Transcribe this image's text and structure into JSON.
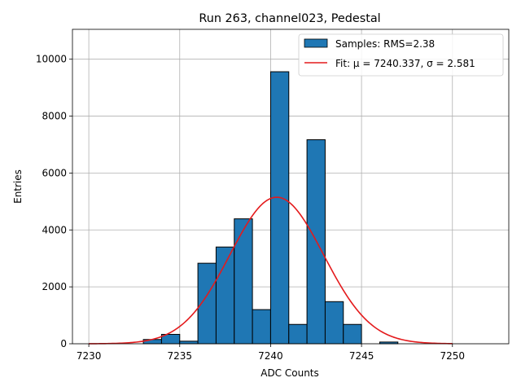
{
  "chart_data": {
    "type": "bar",
    "title": "Run 263, channel023, Pedestal",
    "xlabel": "ADC Counts",
    "ylabel": "Entries",
    "xlim": [
      7229.1,
      7253.1
    ],
    "ylim": [
      0,
      11050
    ],
    "xticks": [
      7230,
      7235,
      7240,
      7245,
      7250
    ],
    "yticks": [
      0,
      2000,
      4000,
      6000,
      8000,
      10000
    ],
    "grid": true,
    "legend_placement": "top-right",
    "bin_width": 1,
    "series": [
      {
        "name": "Samples: RMS=2.38",
        "kind": "histogram",
        "color": "#1f77b4",
        "edgecolor": "#000000",
        "bins": [
          {
            "left": 7230,
            "value": 0
          },
          {
            "left": 7231,
            "value": 0
          },
          {
            "left": 7232,
            "value": 0
          },
          {
            "left": 7233,
            "value": 150
          },
          {
            "left": 7234,
            "value": 330
          },
          {
            "left": 7235,
            "value": 90
          },
          {
            "left": 7236,
            "value": 2830
          },
          {
            "left": 7237,
            "value": 3400
          },
          {
            "left": 7238,
            "value": 4390
          },
          {
            "left": 7239,
            "value": 1200
          },
          {
            "left": 7240,
            "value": 9560
          },
          {
            "left": 7241,
            "value": 680
          },
          {
            "left": 7242,
            "value": 7170
          },
          {
            "left": 7243,
            "value": 1480
          },
          {
            "left": 7244,
            "value": 680
          },
          {
            "left": 7245,
            "value": 0
          },
          {
            "left": 7246,
            "value": 60
          },
          {
            "left": 7247,
            "value": 0
          },
          {
            "left": 7248,
            "value": 0
          },
          {
            "left": 7249,
            "value": 0
          },
          {
            "left": 7250,
            "value": 0
          },
          {
            "left": 7251,
            "value": 0
          }
        ]
      },
      {
        "name": "Fit: μ = 7240.337, σ = 2.581",
        "kind": "gaussian-fit",
        "color": "#e41a1c",
        "mu": 7240.337,
        "sigma": 2.581,
        "amplitude": 5150,
        "x_range": [
          7230,
          7250
        ]
      }
    ]
  }
}
